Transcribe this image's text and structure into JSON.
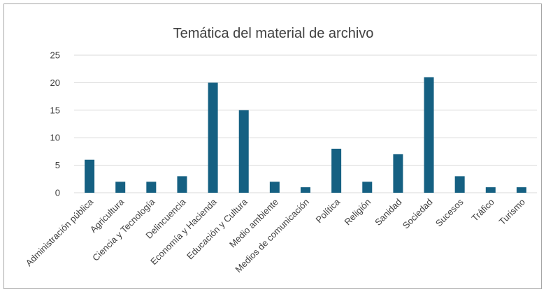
{
  "chart_data": {
    "type": "bar",
    "title": "Temática del material de archivo",
    "xlabel": "",
    "ylabel": "",
    "categories": [
      "Administración pública",
      "Agricultura",
      "Ciencia y Tecnología",
      "Delincuencia",
      "Economía y Hacienda",
      "Educación y Cultura",
      "Medio ambiente",
      "Medios de comunicación",
      "Política",
      "Religión",
      "Sanidad",
      "Sociedad",
      "Sucesos",
      "Tráfico",
      "Turismo"
    ],
    "series": [
      {
        "values": [
          6,
          2,
          2,
          3,
          20,
          15,
          2,
          1,
          8,
          2,
          7,
          21,
          3,
          1,
          1
        ]
      }
    ],
    "ylim": [
      0,
      25
    ],
    "yticks": [
      0,
      5,
      10,
      15,
      20,
      25
    ],
    "grid": true,
    "legend": "none",
    "colors": {
      "bar": "#156082",
      "grid": "#d9d9d9",
      "text": "#404040",
      "border": "#a6a6a6"
    }
  }
}
